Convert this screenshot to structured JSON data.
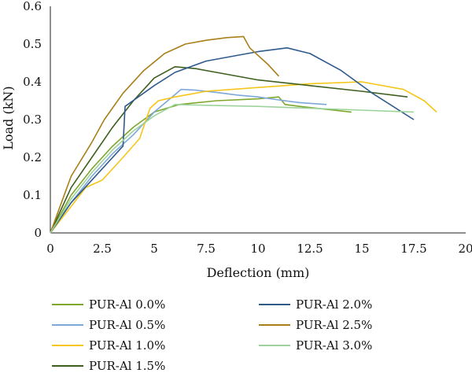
{
  "chart_data": {
    "type": "line",
    "title": "",
    "xlabel": "Deflection (mm)",
    "ylabel": "Load (kN)",
    "xlim": [
      0,
      20
    ],
    "ylim": [
      0,
      0.6
    ],
    "xticks": [
      0,
      2.5,
      5,
      7.5,
      10,
      12.5,
      15,
      17.5,
      20
    ],
    "xtick_labels": [
      "0",
      "2.5",
      "5",
      "7.5",
      "10",
      "12.5",
      "15",
      "17.5",
      "20"
    ],
    "yticks": [
      0,
      0.1,
      0.2,
      0.3,
      0.4,
      0.5,
      0.6
    ],
    "ytick_labels": [
      "0",
      "0.1",
      "0.2",
      "0.3",
      "0.4",
      "0.5",
      "0.6"
    ],
    "grid": false,
    "legend_position": "bottom",
    "series": [
      {
        "name": "PUR-Al 0.0%",
        "color": "#7fa72e",
        "x": [
          0,
          1,
          2,
          3,
          4,
          5,
          6.2,
          8,
          10,
          11,
          11.3,
          12,
          14.5
        ],
        "y": [
          0,
          0.1,
          0.17,
          0.23,
          0.28,
          0.32,
          0.34,
          0.35,
          0.355,
          0.36,
          0.34,
          0.335,
          0.32
        ]
      },
      {
        "name": "PUR-Al 0.5%",
        "color": "#7da7d9",
        "x": [
          0,
          1,
          2,
          3,
          4,
          5,
          6.3,
          7,
          8,
          9,
          10,
          11,
          12,
          13.3
        ],
        "y": [
          0,
          0.08,
          0.15,
          0.21,
          0.26,
          0.32,
          0.38,
          0.378,
          0.372,
          0.365,
          0.36,
          0.352,
          0.345,
          0.34
        ]
      },
      {
        "name": "PUR-Al 1.0%",
        "color": "#f5c518",
        "x": [
          0,
          1,
          1.7,
          2.5,
          3.5,
          4.3,
          4.8,
          5.2,
          6,
          7.5,
          10,
          12.5,
          15,
          17,
          18,
          18.6
        ],
        "y": [
          0,
          0.07,
          0.12,
          0.14,
          0.2,
          0.25,
          0.33,
          0.35,
          0.36,
          0.375,
          0.385,
          0.395,
          0.4,
          0.38,
          0.35,
          0.32
        ]
      },
      {
        "name": "PUR-Al 1.5%",
        "color": "#3e5f1e",
        "x": [
          0,
          1,
          2,
          3,
          4,
          5,
          6,
          7,
          8,
          10,
          12.5,
          15,
          17.2
        ],
        "y": [
          0,
          0.12,
          0.2,
          0.28,
          0.35,
          0.41,
          0.44,
          0.435,
          0.425,
          0.405,
          0.39,
          0.375,
          0.36
        ]
      },
      {
        "name": "PUR-Al 2.0%",
        "color": "#2e5a8c",
        "x": [
          0,
          1,
          2,
          3,
          3.5,
          3.6,
          5,
          6,
          7.5,
          9,
          10,
          11.4,
          12.5,
          14,
          15.5,
          17.5
        ],
        "y": [
          0,
          0.08,
          0.14,
          0.2,
          0.23,
          0.335,
          0.39,
          0.425,
          0.455,
          0.47,
          0.48,
          0.49,
          0.475,
          0.43,
          0.37,
          0.3
        ]
      },
      {
        "name": "PUR-Al 2.5%",
        "color": "#a87f18",
        "x": [
          0,
          1,
          2,
          2.6,
          3.5,
          4.5,
          5.5,
          6.5,
          7.5,
          8.5,
          9.3,
          9.6,
          10.5,
          11
        ],
        "y": [
          0,
          0.15,
          0.24,
          0.3,
          0.37,
          0.43,
          0.475,
          0.5,
          0.51,
          0.517,
          0.52,
          0.49,
          0.445,
          0.415
        ]
      },
      {
        "name": "PUR-Al 3.0%",
        "color": "#9dd39a",
        "x": [
          0,
          1,
          2,
          3,
          4,
          5,
          6,
          7.5,
          10,
          12.5,
          15,
          17.5
        ],
        "y": [
          0,
          0.09,
          0.16,
          0.22,
          0.27,
          0.31,
          0.34,
          0.338,
          0.335,
          0.33,
          0.325,
          0.32
        ]
      }
    ]
  }
}
